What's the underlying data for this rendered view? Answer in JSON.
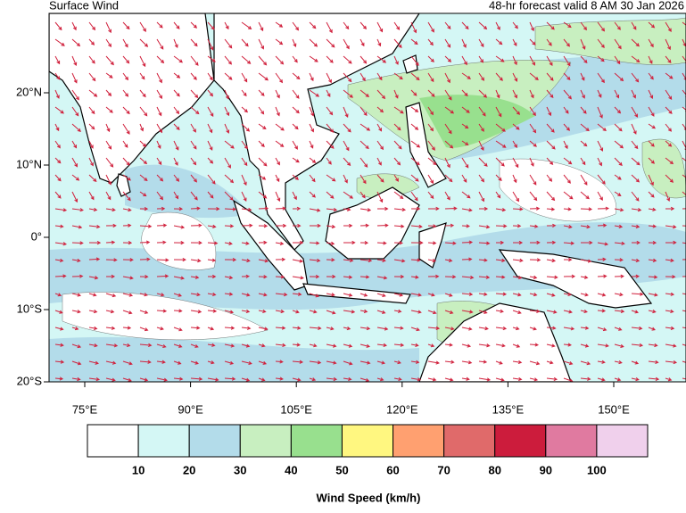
{
  "header": {
    "title": "Surface Wind",
    "subtitle": "48-hr forecast valid 8 AM 30 Jan 2026"
  },
  "map": {
    "lat_labels": [
      "20°N",
      "10°N",
      "0°",
      "10°S",
      "20°S"
    ],
    "lon_labels": [
      "75°E",
      "90°E",
      "105°E",
      "120°E",
      "135°E",
      "150°E"
    ]
  },
  "colorbar": {
    "colors": [
      "#ffffff",
      "#d4f7f5",
      "#b3dcea",
      "#c8efc0",
      "#98e08e",
      "#fff780",
      "#ffa070",
      "#e06a6a",
      "#cc1c3c",
      "#e07aa0",
      "#f0d0ec"
    ],
    "ticks": [
      10,
      20,
      30,
      40,
      50,
      60,
      70,
      80,
      90,
      100
    ],
    "label": "Wind Speed (km/h)"
  }
}
